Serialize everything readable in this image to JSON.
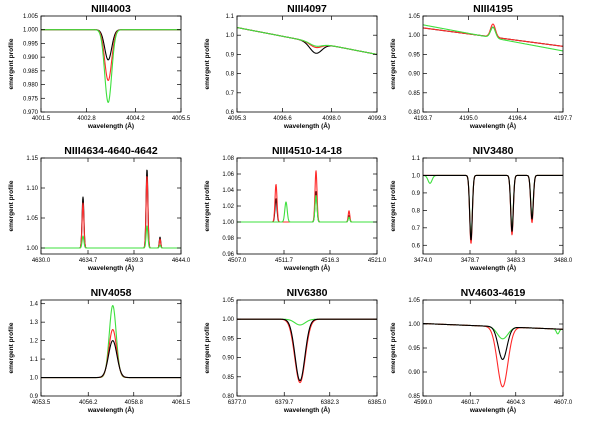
{
  "figure": {
    "description_note": "3x3 grid of emergent line profiles"
  },
  "colors": {
    "black": "#000000",
    "red": "#ff2a2a",
    "green": "#3ee03e"
  },
  "chart_data": [
    {
      "type": "line",
      "title": "NIII4003",
      "xlabel": "wavelength (Å)",
      "ylabel": "emergent profile",
      "xlim": [
        4001.5,
        4005.5
      ],
      "ylim": [
        0.97,
        1.005
      ],
      "xticks": [
        4001.5,
        4002.8,
        4004.2,
        4005.5
      ],
      "xtick_labels": [
        "4001.5",
        "4002.8",
        "4004.2",
        "4005.5"
      ],
      "yticks": [
        0.97,
        0.975,
        0.98,
        0.985,
        0.99,
        0.995,
        1.0,
        1.005
      ],
      "ytick_labels": [
        "0.970",
        "0.975",
        "0.980",
        "0.985",
        "0.990",
        "0.995",
        "1.000",
        "1.005"
      ],
      "series": [
        {
          "name": "black",
          "color": "black",
          "base": 1.0,
          "lines": [
            [
              4003.42,
              -0.011,
              0.1
            ]
          ]
        },
        {
          "name": "red",
          "color": "red",
          "base": 1.0,
          "lines": [
            [
              4003.42,
              -0.0185,
              0.1
            ]
          ]
        },
        {
          "name": "green",
          "color": "green",
          "base": 1.0,
          "lines": [
            [
              4003.42,
              -0.0265,
              0.1
            ]
          ]
        }
      ]
    },
    {
      "type": "line",
      "title": "NIII4097",
      "xlabel": "wavelength (Å)",
      "ylabel": "emergent profile",
      "xlim": [
        4095.3,
        4099.3
      ],
      "ylim": [
        0.6,
        1.1
      ],
      "xticks": [
        4095.3,
        4096.6,
        4098.0,
        4099.3
      ],
      "xtick_labels": [
        "4095.3",
        "4096.6",
        "4098.0",
        "4099.3"
      ],
      "yticks": [
        0.6,
        0.7,
        0.8,
        0.9,
        1.0,
        1.1
      ],
      "ytick_labels": [
        "0.6",
        "0.7",
        "0.8",
        "0.9",
        "1.0",
        "1.1"
      ],
      "series": [
        {
          "name": "black",
          "color": "black",
          "base": 0.97,
          "slope": -0.035,
          "lines": [
            [
              4097.55,
              -0.055,
              0.17
            ]
          ]
        },
        {
          "name": "red",
          "color": "red",
          "base": 0.97,
          "slope": -0.035,
          "lines": [
            [
              4097.55,
              -0.025,
              0.17
            ]
          ]
        },
        {
          "name": "green",
          "color": "green",
          "base": 0.97,
          "slope": -0.035,
          "lines": [
            [
              4097.55,
              -0.018,
              0.17
            ]
          ]
        }
      ]
    },
    {
      "type": "line",
      "title": "NIII4195",
      "xlabel": "wavelength (Å)",
      "ylabel": "emergent profile",
      "xlim": [
        4193.7,
        4197.7
      ],
      "ylim": [
        0.8,
        1.05
      ],
      "xticks": [
        4193.7,
        4195.0,
        4196.4,
        4197.7
      ],
      "xtick_labels": [
        "4193.7",
        "4195.0",
        "4196.4",
        "4197.7"
      ],
      "yticks": [
        0.8,
        0.85,
        0.9,
        0.95,
        1.0,
        1.05
      ],
      "ytick_labels": [
        "0.80",
        "0.85",
        "0.90",
        "0.95",
        "1.00",
        "1.05"
      ],
      "series": [
        {
          "name": "black",
          "color": "black",
          "base": 0.995,
          "slope": -0.012,
          "lines": [
            [
              4195.7,
              0.026,
              0.07
            ]
          ]
        },
        {
          "name": "red",
          "color": "red",
          "base": 0.995,
          "slope": -0.012,
          "lines": [
            [
              4195.7,
              0.034,
              0.07
            ]
          ]
        },
        {
          "name": "green",
          "color": "green",
          "base": 0.993,
          "slope": -0.017,
          "lines": [
            [
              4195.7,
              0.028,
              0.07
            ]
          ]
        }
      ]
    },
    {
      "type": "line",
      "title": "NIII4634-4640-4642",
      "xlabel": "wavelength (Å)",
      "ylabel": "emergent profile",
      "xlim": [
        4630.0,
        4644.0
      ],
      "ylim": [
        0.99,
        1.15
      ],
      "xticks": [
        4630.0,
        4634.7,
        4639.3,
        4644.0
      ],
      "xtick_labels": [
        "4630.0",
        "4634.7",
        "4639.3",
        "4644.0"
      ],
      "yticks": [
        1.0,
        1.05,
        1.1,
        1.15
      ],
      "ytick_labels": [
        "1.00",
        "1.05",
        "1.10",
        "1.15"
      ],
      "series": [
        {
          "name": "black",
          "color": "black",
          "base": 1.0,
          "lines": [
            [
              4634.2,
              0.085,
              0.09
            ],
            [
              4640.6,
              0.131,
              0.09
            ],
            [
              4641.9,
              0.018,
              0.07
            ]
          ]
        },
        {
          "name": "red",
          "color": "red",
          "base": 1.0,
          "lines": [
            [
              4634.2,
              0.075,
              0.09
            ],
            [
              4640.6,
              0.12,
              0.09
            ],
            [
              4641.9,
              0.015,
              0.07
            ]
          ]
        },
        {
          "name": "green",
          "color": "green",
          "base": 1.0,
          "lines": [
            [
              4634.2,
              0.02,
              0.09
            ],
            [
              4640.6,
              0.037,
              0.09
            ],
            [
              4641.9,
              0.005,
              0.07
            ]
          ]
        }
      ]
    },
    {
      "type": "line",
      "title": "NIII4510-14-18",
      "xlabel": "wavelength (Å)",
      "ylabel": "emergent profile",
      "xlim": [
        4507.0,
        4521.0
      ],
      "ylim": [
        0.96,
        1.08
      ],
      "xticks": [
        4507.0,
        4511.7,
        4516.3,
        4521.0
      ],
      "xtick_labels": [
        "4507.0",
        "4511.7",
        "4516.3",
        "4521.0"
      ],
      "yticks": [
        0.96,
        0.98,
        1.0,
        1.02,
        1.04,
        1.06,
        1.08
      ],
      "ytick_labels": [
        "0.96",
        "0.98",
        "1.00",
        "1.02",
        "1.04",
        "1.06",
        "1.08"
      ],
      "series": [
        {
          "name": "black",
          "color": "black",
          "base": 1.0,
          "lines": [
            [
              4510.9,
              0.029,
              0.1
            ],
            [
              4514.9,
              0.038,
              0.1
            ],
            [
              4518.2,
              0.008,
              0.08
            ]
          ]
        },
        {
          "name": "red",
          "color": "red",
          "base": 1.0,
          "lines": [
            [
              4510.9,
              0.047,
              0.1
            ],
            [
              4514.9,
              0.064,
              0.1
            ],
            [
              4518.2,
              0.014,
              0.08
            ]
          ]
        },
        {
          "name": "green",
          "color": "green",
          "base": 1.0,
          "lines": [
            [
              4511.9,
              0.025,
              0.12
            ],
            [
              4514.9,
              0.033,
              0.1
            ],
            [
              4518.2,
              0.006,
              0.08
            ]
          ]
        }
      ]
    },
    {
      "type": "line",
      "title": "NIV3480",
      "xlabel": "wavelength (Å)",
      "ylabel": "emergent profile",
      "xlim": [
        3474.0,
        3488.0
      ],
      "ylim": [
        0.55,
        1.1
      ],
      "xticks": [
        3474.0,
        3478.7,
        3483.3,
        3488.0
      ],
      "xtick_labels": [
        "3474.0",
        "3478.7",
        "3483.3",
        "3488.0"
      ],
      "yticks": [
        0.6,
        0.7,
        0.8,
        0.9,
        1.0,
        1.1
      ],
      "ytick_labels": [
        "0.6",
        "0.7",
        "0.8",
        "0.9",
        "1.0",
        "1.1"
      ],
      "series": [
        {
          "name": "green",
          "color": "green",
          "base": 1.0,
          "lines": [
            [
              3474.7,
              -0.045,
              0.2
            ],
            [
              3478.8,
              -0.36,
              0.13
            ],
            [
              3482.9,
              -0.31,
              0.13
            ],
            [
              3484.9,
              -0.24,
              0.13
            ]
          ]
        },
        {
          "name": "red",
          "color": "red",
          "base": 1.0,
          "lines": [
            [
              3478.8,
              -0.39,
              0.13
            ],
            [
              3482.9,
              -0.34,
              0.13
            ],
            [
              3484.9,
              -0.27,
              0.13
            ]
          ]
        },
        {
          "name": "black",
          "color": "black",
          "base": 1.0,
          "lines": [
            [
              3478.8,
              -0.37,
              0.13
            ],
            [
              3482.9,
              -0.32,
              0.13
            ],
            [
              3484.9,
              -0.25,
              0.13
            ]
          ]
        }
      ]
    },
    {
      "type": "line",
      "title": "NIV4058",
      "xlabel": "wavelength (Å)",
      "ylabel": "emergent profile",
      "xlim": [
        4053.5,
        4061.5
      ],
      "ylim": [
        0.9,
        1.42
      ],
      "xticks": [
        4053.5,
        4056.2,
        4058.8,
        4061.5
      ],
      "xtick_labels": [
        "4053.5",
        "4056.2",
        "4058.8",
        "4061.5"
      ],
      "yticks": [
        0.9,
        1.0,
        1.1,
        1.2,
        1.3,
        1.4
      ],
      "ytick_labels": [
        "0.9",
        "1.0",
        "1.1",
        "1.2",
        "1.3",
        "1.4"
      ],
      "series": [
        {
          "name": "green",
          "color": "green",
          "base": 1.0,
          "lines": [
            [
              4057.6,
              0.39,
              0.2
            ]
          ]
        },
        {
          "name": "red",
          "color": "red",
          "base": 1.0,
          "lines": [
            [
              4057.6,
              0.26,
              0.22
            ]
          ]
        },
        {
          "name": "black",
          "color": "black",
          "base": 1.0,
          "lines": [
            [
              4057.6,
              0.2,
              0.24
            ]
          ]
        }
      ]
    },
    {
      "type": "line",
      "title": "NIV6380",
      "xlabel": "wavelength (Å)",
      "ylabel": "emergent profile",
      "xlim": [
        6377.0,
        6385.0
      ],
      "ylim": [
        0.8,
        1.05
      ],
      "xticks": [
        6377.0,
        6379.7,
        6382.3,
        6385.0
      ],
      "xtick_labels": [
        "6377.0",
        "6379.7",
        "6382.3",
        "6385.0"
      ],
      "yticks": [
        0.8,
        0.85,
        0.9,
        0.95,
        1.0,
        1.05
      ],
      "ytick_labels": [
        "0.80",
        "0.85",
        "0.90",
        "0.95",
        "1.00",
        "1.05"
      ],
      "series": [
        {
          "name": "green",
          "color": "green",
          "base": 1.0,
          "lines": [
            [
              6380.6,
              -0.015,
              0.3
            ]
          ]
        },
        {
          "name": "red",
          "color": "red",
          "base": 1.0,
          "lines": [
            [
              6380.6,
              -0.165,
              0.3
            ]
          ]
        },
        {
          "name": "black",
          "color": "black",
          "base": 1.0,
          "lines": [
            [
              6380.6,
              -0.16,
              0.28
            ]
          ]
        }
      ]
    },
    {
      "type": "line",
      "title": "NV4603-4619",
      "xlabel": "wavelength (Å)",
      "ylabel": "emergent profile",
      "xlim": [
        4599.0,
        4607.0
      ],
      "ylim": [
        0.85,
        1.05
      ],
      "xticks": [
        4599.0,
        4601.7,
        4604.3,
        4607.0
      ],
      "xtick_labels": [
        "4599.0",
        "4601.7",
        "4604.3",
        "4607.0"
      ],
      "yticks": [
        0.85,
        0.9,
        0.95,
        1.0,
        1.05
      ],
      "ytick_labels": [
        "0.85",
        "0.90",
        "0.95",
        "1.00",
        "1.05"
      ],
      "series": [
        {
          "name": "green",
          "color": "green",
          "base": 0.995,
          "slope": -0.0015,
          "lines": [
            [
              4603.55,
              -0.025,
              0.3
            ],
            [
              4606.7,
              -0.01,
              0.08
            ]
          ]
        },
        {
          "name": "red",
          "color": "red",
          "base": 0.995,
          "slope": -0.0015,
          "lines": [
            [
              4603.55,
              -0.125,
              0.3
            ]
          ]
        },
        {
          "name": "black",
          "color": "black",
          "base": 0.995,
          "slope": -0.0015,
          "lines": [
            [
              4603.55,
              -0.068,
              0.25
            ]
          ]
        }
      ]
    }
  ]
}
